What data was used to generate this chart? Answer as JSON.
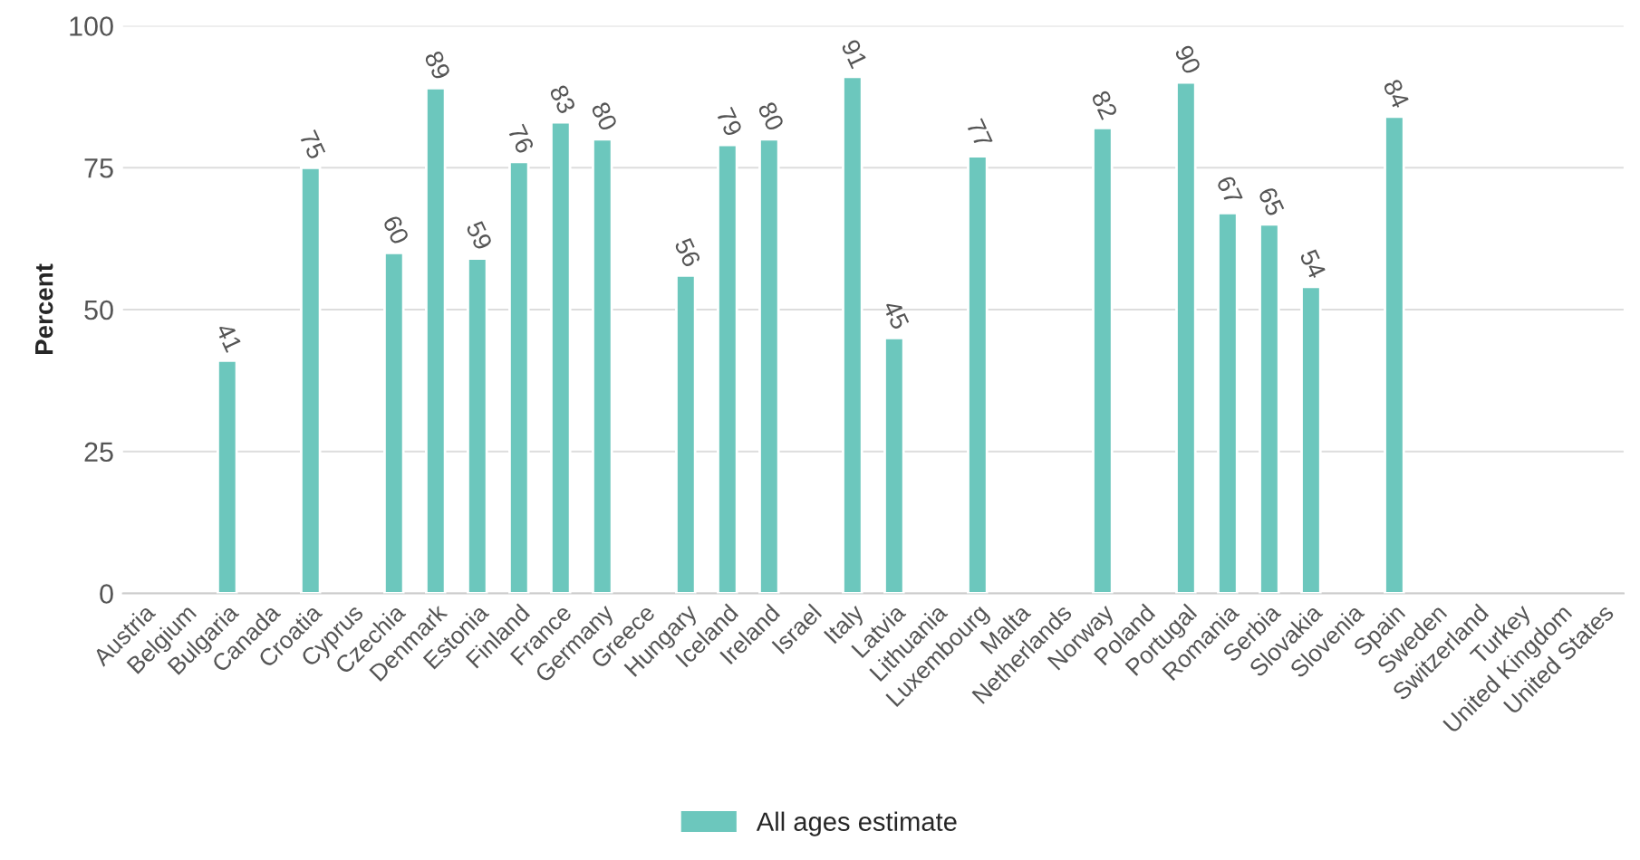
{
  "chart_data": {
    "type": "bar",
    "ylabel": "Percent",
    "categories": [
      "Austria",
      "Belgium",
      "Bulgaria",
      "Canada",
      "Croatia",
      "Cyprus",
      "Czechia",
      "Denmark",
      "Estonia",
      "Finland",
      "France",
      "Germany",
      "Greece",
      "Hungary",
      "Iceland",
      "Ireland",
      "Israel",
      "Italy",
      "Latvia",
      "Lithuania",
      "Luxembourg",
      "Malta",
      "Netherlands",
      "Norway",
      "Poland",
      "Portugal",
      "Romania",
      "Serbia",
      "Slovakia",
      "Slovenia",
      "Spain",
      "Sweden",
      "Switzerland",
      "Turkey",
      "United Kingdom",
      "United States"
    ],
    "series": [
      {
        "name": "All ages estimate",
        "color": "#6cc7bd",
        "values": [
          null,
          null,
          41,
          null,
          75,
          null,
          60,
          89,
          59,
          76,
          83,
          80,
          null,
          56,
          79,
          80,
          null,
          91,
          45,
          null,
          77,
          null,
          null,
          82,
          null,
          90,
          67,
          65,
          54,
          null,
          84,
          null,
          null,
          null,
          null,
          null
        ]
      }
    ],
    "ylim": [
      0,
      100
    ],
    "yticks": [
      0,
      25,
      50,
      75,
      100
    ],
    "grid": "y",
    "legend": "bottom",
    "data_labels": true
  }
}
